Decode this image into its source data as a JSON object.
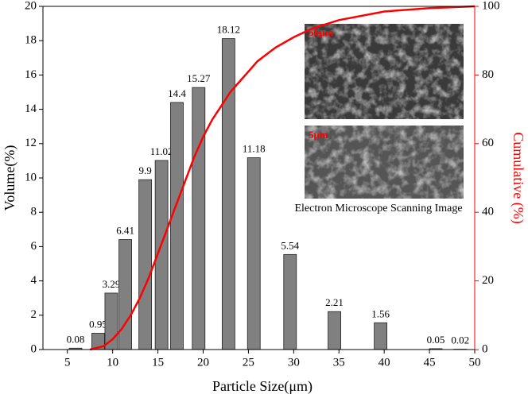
{
  "chart_data": {
    "type": "bar",
    "x_label": "Particle Size(μm)",
    "y_label": "Volume(%)",
    "y2_label": "Cumulative (%)",
    "xlim": [
      2.3,
      50
    ],
    "ylim": [
      0,
      20
    ],
    "y2lim": [
      0,
      100
    ],
    "xticks": [
      5,
      10,
      15,
      20,
      25,
      30,
      35,
      40,
      45,
      50
    ],
    "yticks": [
      0,
      2,
      4,
      6,
      8,
      10,
      12,
      14,
      16,
      18,
      20
    ],
    "y2ticks": [
      0,
      20,
      40,
      60,
      80,
      100
    ],
    "y2color": "#ff0000",
    "series": [
      {
        "type": "bar",
        "color": "#808080",
        "x": [
          5.9,
          8.4,
          9.85,
          11.4,
          13.6,
          15.4,
          17.1,
          19.5,
          22.8,
          25.6,
          29.6,
          34.5,
          39.6,
          45.7,
          48.4
        ],
        "values": [
          0.08,
          0.95,
          3.29,
          6.41,
          9.9,
          11.02,
          14.4,
          15.27,
          18.12,
          11.18,
          5.54,
          2.21,
          1.56,
          0.05,
          0.02
        ]
      },
      {
        "type": "line",
        "axis": "y2",
        "color": "#ff0000",
        "x": [
          7.5,
          9,
          10,
          11,
          12,
          13,
          14,
          15,
          16,
          17,
          18,
          19,
          20,
          21,
          22,
          23,
          24,
          25,
          26,
          28,
          30,
          32,
          35,
          40,
          45,
          50
        ],
        "values": [
          0,
          1,
          3,
          6,
          10,
          15,
          21,
          28,
          35,
          42,
          49,
          56,
          62,
          67,
          71,
          75,
          78,
          81,
          84,
          88,
          91,
          93.5,
          96,
          98.5,
          99.5,
          100
        ]
      }
    ],
    "insets": [
      {
        "label": "50μm"
      },
      {
        "label": "5μm"
      }
    ],
    "inset_caption": "Electron Microscope Scanning Image"
  }
}
